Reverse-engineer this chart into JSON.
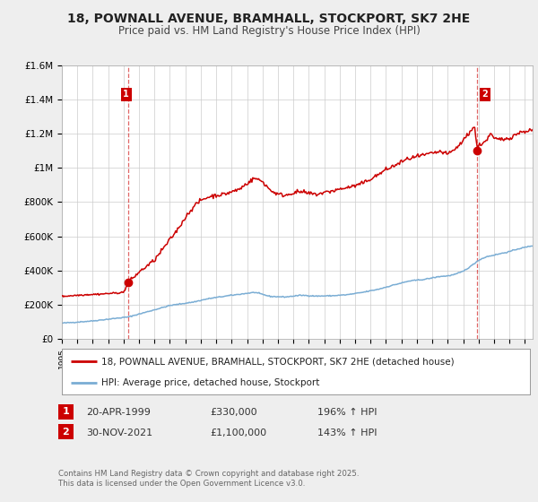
{
  "title1": "18, POWNALL AVENUE, BRAMHALL, STOCKPORT, SK7 2HE",
  "title2": "Price paid vs. HM Land Registry's House Price Index (HPI)",
  "title_fontsize": 10,
  "subtitle_fontsize": 8.5,
  "ylim": [
    0,
    1600000
  ],
  "xlim_start": 1995.0,
  "xlim_end": 2025.5,
  "yticks": [
    0,
    200000,
    400000,
    600000,
    800000,
    1000000,
    1200000,
    1400000,
    1600000
  ],
  "ytick_labels": [
    "£0",
    "£200K",
    "£400K",
    "£600K",
    "£800K",
    "£1M",
    "£1.2M",
    "£1.4M",
    "£1.6M"
  ],
  "red_color": "#cc0000",
  "blue_color": "#7aadd4",
  "purchase1_x": 1999.31,
  "purchase1_y": 330000,
  "purchase2_x": 2021.92,
  "purchase2_y": 1100000,
  "legend_label_red": "18, POWNALL AVENUE, BRAMHALL, STOCKPORT, SK7 2HE (detached house)",
  "legend_label_blue": "HPI: Average price, detached house, Stockport",
  "annotation1_label": "1",
  "annotation2_label": "2",
  "table_row1": [
    "1",
    "20-APR-1999",
    "£330,000",
    "196% ↑ HPI"
  ],
  "table_row2": [
    "2",
    "30-NOV-2021",
    "£1,100,000",
    "143% ↑ HPI"
  ],
  "footer": "Contains HM Land Registry data © Crown copyright and database right 2025.\nThis data is licensed under the Open Government Licence v3.0.",
  "bg_color": "#eeeeee",
  "plot_bg_color": "#ffffff",
  "hpi_anchors": [
    [
      1995.0,
      92000
    ],
    [
      1996.0,
      98000
    ],
    [
      1997.0,
      105000
    ],
    [
      1998.0,
      115000
    ],
    [
      1999.3,
      128000
    ],
    [
      2000.0,
      145000
    ],
    [
      2001.0,
      170000
    ],
    [
      2002.0,
      195000
    ],
    [
      2003.5,
      215000
    ],
    [
      2004.5,
      235000
    ],
    [
      2005.0,
      242000
    ],
    [
      2006.0,
      255000
    ],
    [
      2007.5,
      272000
    ],
    [
      2008.5,
      248000
    ],
    [
      2009.5,
      245000
    ],
    [
      2010.5,
      255000
    ],
    [
      2011.5,
      250000
    ],
    [
      2012.5,
      252000
    ],
    [
      2013.5,
      258000
    ],
    [
      2014.5,
      272000
    ],
    [
      2015.5,
      290000
    ],
    [
      2016.5,
      315000
    ],
    [
      2017.5,
      338000
    ],
    [
      2018.5,
      348000
    ],
    [
      2019.5,
      365000
    ],
    [
      2020.0,
      368000
    ],
    [
      2020.5,
      378000
    ],
    [
      2021.0,
      395000
    ],
    [
      2021.5,
      425000
    ],
    [
      2022.0,
      460000
    ],
    [
      2022.5,
      480000
    ],
    [
      2023.0,
      490000
    ],
    [
      2023.5,
      500000
    ],
    [
      2024.0,
      510000
    ],
    [
      2024.5,
      525000
    ],
    [
      2025.5,
      545000
    ]
  ],
  "red_anchors_pre": [
    [
      1995.0,
      248000
    ],
    [
      1995.5,
      252000
    ],
    [
      1996.0,
      255000
    ],
    [
      1996.5,
      258000
    ],
    [
      1997.0,
      260000
    ],
    [
      1997.5,
      262000
    ],
    [
      1998.0,
      265000
    ],
    [
      1998.5,
      268000
    ],
    [
      1999.0,
      272000
    ],
    [
      1999.31,
      330000
    ]
  ],
  "red_anchors_post": [
    [
      1999.31,
      330000
    ],
    [
      2000.0,
      390000
    ],
    [
      2001.0,
      460000
    ],
    [
      2002.0,
      580000
    ],
    [
      2002.5,
      640000
    ],
    [
      2003.0,
      710000
    ],
    [
      2003.5,
      770000
    ],
    [
      2004.0,
      810000
    ],
    [
      2004.5,
      830000
    ],
    [
      2005.0,
      840000
    ],
    [
      2005.5,
      845000
    ],
    [
      2006.0,
      860000
    ],
    [
      2006.5,
      875000
    ],
    [
      2007.0,
      910000
    ],
    [
      2007.5,
      940000
    ],
    [
      2008.0,
      920000
    ],
    [
      2008.5,
      870000
    ],
    [
      2009.0,
      845000
    ],
    [
      2009.5,
      840000
    ],
    [
      2010.0,
      855000
    ],
    [
      2010.5,
      860000
    ],
    [
      2011.0,
      850000
    ],
    [
      2011.5,
      845000
    ],
    [
      2012.0,
      855000
    ],
    [
      2012.5,
      865000
    ],
    [
      2013.0,
      875000
    ],
    [
      2013.5,
      885000
    ],
    [
      2014.0,
      895000
    ],
    [
      2014.5,
      910000
    ],
    [
      2015.0,
      935000
    ],
    [
      2015.5,
      960000
    ],
    [
      2016.0,
      990000
    ],
    [
      2016.5,
      1010000
    ],
    [
      2017.0,
      1035000
    ],
    [
      2017.5,
      1055000
    ],
    [
      2018.0,
      1065000
    ],
    [
      2018.5,
      1075000
    ],
    [
      2019.0,
      1085000
    ],
    [
      2019.5,
      1095000
    ],
    [
      2020.0,
      1080000
    ],
    [
      2020.5,
      1110000
    ],
    [
      2021.0,
      1160000
    ],
    [
      2021.5,
      1220000
    ],
    [
      2021.75,
      1240000
    ],
    [
      2021.92,
      1100000
    ],
    [
      2022.0,
      1130000
    ],
    [
      2022.5,
      1160000
    ],
    [
      2022.8,
      1200000
    ],
    [
      2023.0,
      1170000
    ],
    [
      2023.5,
      1165000
    ],
    [
      2024.0,
      1175000
    ],
    [
      2024.5,
      1200000
    ],
    [
      2025.0,
      1215000
    ],
    [
      2025.5,
      1220000
    ]
  ]
}
